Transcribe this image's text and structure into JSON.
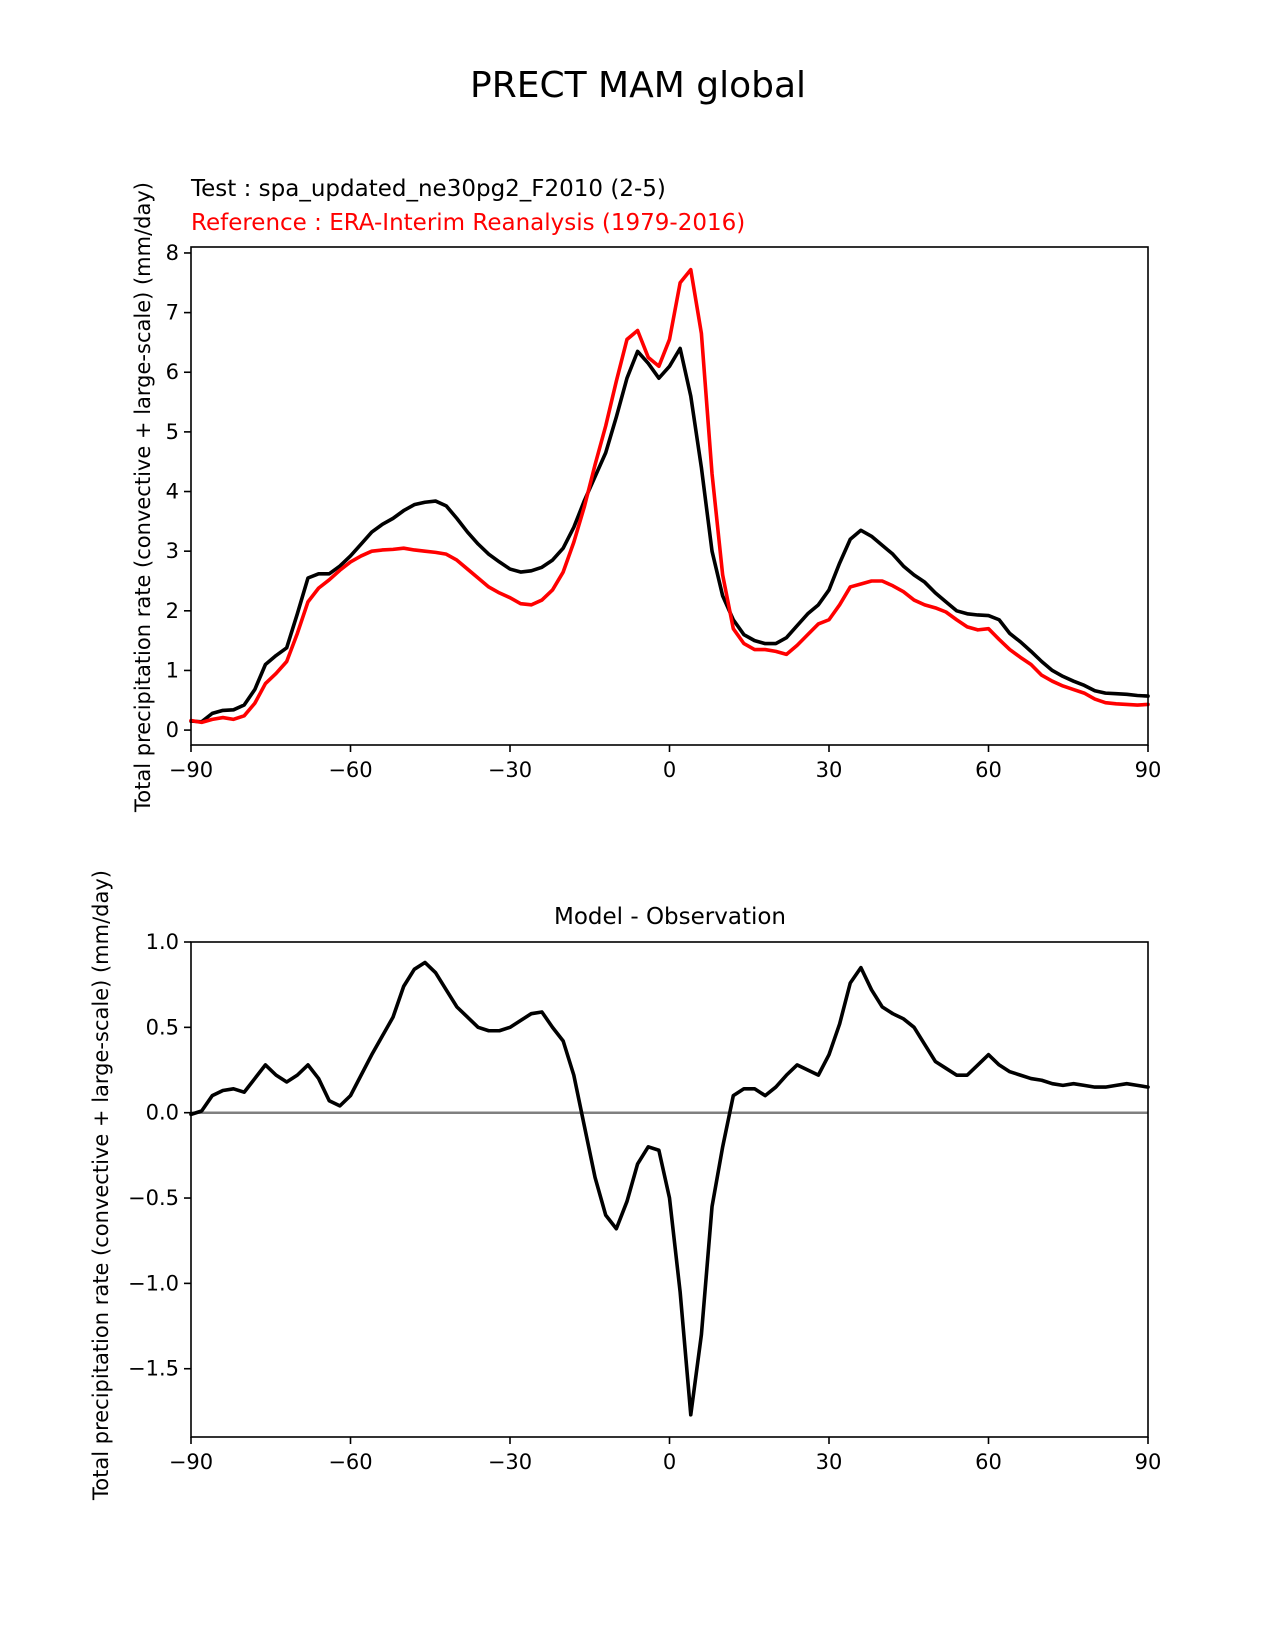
{
  "figure_title": "PRECT MAM global",
  "chart_data": [
    {
      "type": "line",
      "subtitle_test": "Test : spa_updated_ne30pg2_F2010 (2-5)",
      "subtitle_reference": "Reference : ERA-Interim Reanalysis (1979-2016)",
      "ylabel": "Total precipitation rate (convective + large-scale) (mm/day)",
      "xlabel": "",
      "xlim": [
        -90,
        90
      ],
      "ylim": [
        -0.25,
        8.1
      ],
      "xticks": [
        -90,
        -60,
        -30,
        0,
        30,
        60,
        90
      ],
      "xtick_labels": [
        "−90",
        "−60",
        "−30",
        "0",
        "30",
        "60",
        "90"
      ],
      "yticks": [
        0,
        1,
        2,
        3,
        4,
        5,
        6,
        7,
        8
      ],
      "ytick_labels": [
        "0",
        "1",
        "2",
        "3",
        "4",
        "5",
        "6",
        "7",
        "8"
      ],
      "grid": false,
      "series": [
        {
          "name": "Test",
          "color": "#000000",
          "x": [
            -90,
            -88,
            -86,
            -84,
            -82,
            -80,
            -78,
            -76,
            -74,
            -72,
            -70,
            -68,
            -66,
            -64,
            -62,
            -60,
            -58,
            -56,
            -54,
            -52,
            -50,
            -48,
            -46,
            -44,
            -42,
            -40,
            -38,
            -36,
            -34,
            -32,
            -30,
            -28,
            -26,
            -24,
            -22,
            -20,
            -18,
            -16,
            -14,
            -12,
            -10,
            -8,
            -6,
            -4,
            -2,
            0,
            2,
            4,
            6,
            8,
            10,
            12,
            14,
            16,
            18,
            20,
            22,
            24,
            26,
            28,
            30,
            32,
            34,
            36,
            38,
            40,
            42,
            44,
            46,
            48,
            50,
            52,
            54,
            56,
            58,
            60,
            62,
            64,
            66,
            68,
            70,
            72,
            74,
            76,
            78,
            80,
            82,
            84,
            86,
            88,
            90
          ],
          "values": [
            0.15,
            0.14,
            0.28,
            0.33,
            0.34,
            0.42,
            0.68,
            1.1,
            1.25,
            1.38,
            1.95,
            2.55,
            2.62,
            2.62,
            2.75,
            2.92,
            3.12,
            3.32,
            3.45,
            3.55,
            3.68,
            3.78,
            3.82,
            3.84,
            3.76,
            3.55,
            3.32,
            3.12,
            2.95,
            2.82,
            2.7,
            2.65,
            2.67,
            2.73,
            2.85,
            3.05,
            3.4,
            3.85,
            4.25,
            4.65,
            5.25,
            5.9,
            6.35,
            6.15,
            5.9,
            6.1,
            6.4,
            5.6,
            4.4,
            3.0,
            2.25,
            1.85,
            1.6,
            1.5,
            1.45,
            1.45,
            1.55,
            1.75,
            1.95,
            2.1,
            2.35,
            2.8,
            3.2,
            3.35,
            3.25,
            3.1,
            2.95,
            2.75,
            2.6,
            2.48,
            2.3,
            2.15,
            2.0,
            1.95,
            1.93,
            1.92,
            1.85,
            1.62,
            1.48,
            1.32,
            1.15,
            1.0,
            0.9,
            0.82,
            0.75,
            0.66,
            0.62,
            0.61,
            0.6,
            0.58,
            0.57
          ]
        },
        {
          "name": "Reference",
          "color": "#ff0000",
          "x": [
            -90,
            -88,
            -86,
            -84,
            -82,
            -80,
            -78,
            -76,
            -74,
            -72,
            -70,
            -68,
            -66,
            -64,
            -62,
            -60,
            -58,
            -56,
            -54,
            -52,
            -50,
            -48,
            -46,
            -44,
            -42,
            -40,
            -38,
            -36,
            -34,
            -32,
            -30,
            -28,
            -26,
            -24,
            -22,
            -20,
            -18,
            -16,
            -14,
            -12,
            -10,
            -8,
            -6,
            -4,
            -2,
            0,
            2,
            4,
            6,
            8,
            10,
            12,
            14,
            16,
            18,
            20,
            22,
            24,
            26,
            28,
            30,
            32,
            34,
            36,
            38,
            40,
            42,
            44,
            46,
            48,
            50,
            52,
            54,
            56,
            58,
            60,
            62,
            64,
            66,
            68,
            70,
            72,
            74,
            76,
            78,
            80,
            82,
            84,
            86,
            88,
            90
          ],
          "values": [
            0.16,
            0.13,
            0.18,
            0.21,
            0.18,
            0.24,
            0.45,
            0.78,
            0.95,
            1.15,
            1.62,
            2.15,
            2.38,
            2.52,
            2.68,
            2.82,
            2.92,
            3.0,
            3.02,
            3.03,
            3.05,
            3.02,
            3.0,
            2.98,
            2.95,
            2.85,
            2.7,
            2.55,
            2.4,
            2.3,
            2.22,
            2.12,
            2.1,
            2.18,
            2.35,
            2.65,
            3.15,
            3.75,
            4.45,
            5.1,
            5.85,
            6.55,
            6.7,
            6.25,
            6.1,
            6.55,
            7.5,
            7.72,
            6.65,
            4.3,
            2.6,
            1.7,
            1.45,
            1.35,
            1.35,
            1.32,
            1.27,
            1.42,
            1.6,
            1.78,
            1.85,
            2.1,
            2.4,
            2.45,
            2.5,
            2.5,
            2.42,
            2.32,
            2.18,
            2.1,
            2.05,
            1.98,
            1.85,
            1.73,
            1.68,
            1.7,
            1.52,
            1.35,
            1.22,
            1.1,
            0.92,
            0.82,
            0.74,
            0.68,
            0.62,
            0.52,
            0.46,
            0.44,
            0.43,
            0.42,
            0.43
          ]
        }
      ]
    },
    {
      "type": "line",
      "title": "Model - Observation",
      "ylabel": "Total precipitation rate (convective + large-scale) (mm/day)",
      "xlabel": "",
      "xlim": [
        -90,
        90
      ],
      "ylim": [
        -1.9,
        1.0
      ],
      "xticks": [
        -90,
        -60,
        -30,
        0,
        30,
        60,
        90
      ],
      "xtick_labels": [
        "−90",
        "−60",
        "−30",
        "0",
        "30",
        "60",
        "90"
      ],
      "yticks": [
        -1.5,
        -1.0,
        -0.5,
        0.0,
        0.5,
        1.0
      ],
      "ytick_labels": [
        "−1.5",
        "−1.0",
        "−0.5",
        "0.0",
        "0.5",
        "1.0"
      ],
      "zero_line": 0,
      "grid": false,
      "series": [
        {
          "name": "Model - Observation",
          "color": "#000000",
          "x": [
            -90,
            -88,
            -86,
            -84,
            -82,
            -80,
            -78,
            -76,
            -74,
            -72,
            -70,
            -68,
            -66,
            -64,
            -62,
            -60,
            -58,
            -56,
            -54,
            -52,
            -50,
            -48,
            -46,
            -44,
            -42,
            -40,
            -38,
            -36,
            -34,
            -32,
            -30,
            -28,
            -26,
            -24,
            -22,
            -20,
            -18,
            -16,
            -14,
            -12,
            -10,
            -8,
            -6,
            -4,
            -2,
            0,
            2,
            4,
            6,
            8,
            10,
            12,
            14,
            16,
            18,
            20,
            22,
            24,
            26,
            28,
            30,
            32,
            34,
            36,
            38,
            40,
            42,
            44,
            46,
            48,
            50,
            52,
            54,
            56,
            58,
            60,
            62,
            64,
            66,
            68,
            70,
            72,
            74,
            76,
            78,
            80,
            82,
            84,
            86,
            88,
            90
          ],
          "values": [
            -0.01,
            0.01,
            0.1,
            0.13,
            0.14,
            0.12,
            0.2,
            0.28,
            0.22,
            0.18,
            0.22,
            0.28,
            0.2,
            0.07,
            0.04,
            0.1,
            0.22,
            0.34,
            0.45,
            0.56,
            0.74,
            0.84,
            0.88,
            0.82,
            0.72,
            0.62,
            0.56,
            0.5,
            0.48,
            0.48,
            0.5,
            0.54,
            0.58,
            0.59,
            0.5,
            0.42,
            0.22,
            -0.08,
            -0.38,
            -0.6,
            -0.68,
            -0.52,
            -0.3,
            -0.2,
            -0.22,
            -0.5,
            -1.05,
            -1.77,
            -1.3,
            -0.55,
            -0.2,
            0.1,
            0.14,
            0.14,
            0.1,
            0.15,
            0.22,
            0.28,
            0.25,
            0.22,
            0.34,
            0.52,
            0.76,
            0.85,
            0.72,
            0.62,
            0.58,
            0.55,
            0.5,
            0.4,
            0.3,
            0.26,
            0.22,
            0.22,
            0.28,
            0.34,
            0.28,
            0.24,
            0.22,
            0.2,
            0.19,
            0.17,
            0.16,
            0.17,
            0.16,
            0.15,
            0.15,
            0.16,
            0.17,
            0.16,
            0.15
          ]
        }
      ]
    }
  ]
}
